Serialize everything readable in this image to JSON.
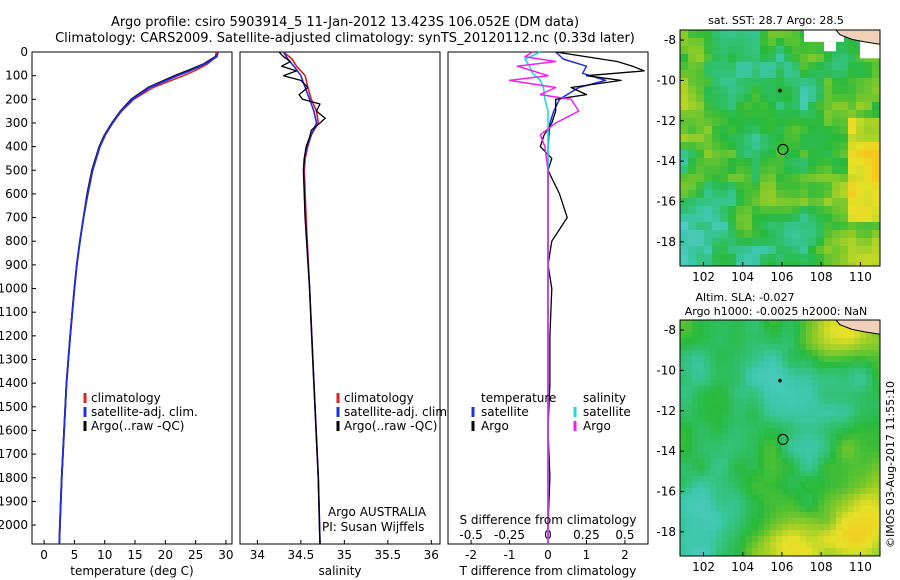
{
  "title_line1": "Argo profile: csiro 5903914_5 11-Jan-2012 13.423S 106.052E (DM data)",
  "title_line2": "Climatology: CARS2009. Satellite-adjusted climatology: synTS_20120112.nc (0.33d later)",
  "credit": "©IMOS 03-Aug-2017 11:55:10",
  "colors": {
    "climatology": "#e02020",
    "satellite": "#1f2fe0",
    "argo": "#000000",
    "salinity_satellite": "#22d8e8",
    "salinity_argo": "#ee22ee"
  },
  "depth_ticks": [
    "0",
    "100",
    "200",
    "300",
    "400",
    "500",
    "600",
    "700",
    "800",
    "900",
    "1000",
    "1100",
    "1200",
    "1300",
    "1400",
    "1500",
    "1600",
    "1700",
    "1800",
    "1900",
    "2000"
  ],
  "temp_panel": {
    "xlabel": "temperature (deg C)",
    "xticks": [
      "0",
      "5",
      "10",
      "15",
      "20",
      "25",
      "30"
    ],
    "legend": [
      "climatology",
      "satellite-adj. clim.",
      "Argo(..raw -QC)"
    ]
  },
  "sal_panel": {
    "xlabel": "salinity",
    "xticks": [
      "34",
      "34.5",
      "35",
      "35.5",
      "36"
    ],
    "legend": [
      "climatology",
      "satellite-adj. clim.",
      "Argo(..raw -QC)"
    ],
    "note1": "Argo AUSTRALIA",
    "note2": "PI: Susan Wijffels"
  },
  "diff_panel": {
    "top_xlabel": "S difference from climatology",
    "top_xticks": [
      "-0.5",
      "-0.25",
      "0",
      "0.25",
      "0.5"
    ],
    "xlabel": "T difference from climatology",
    "xticks": [
      "-2",
      "-1",
      "0",
      "1",
      "2"
    ],
    "legend_t_title": "temperature",
    "legend_s_title": "salinity",
    "legend_t": [
      "satellite",
      "Argo"
    ],
    "legend_s": [
      "satellite",
      "Argo"
    ]
  },
  "map_sst": {
    "title": "sat. SST: 28.7  Argo: 28.5",
    "xticks": [
      "102",
      "104",
      "106",
      "108",
      "110"
    ],
    "yticks": [
      "-8",
      "-10",
      "-12",
      "-14",
      "-16",
      "-18"
    ]
  },
  "map_sla": {
    "title1": "Altim. SLA: -0.027",
    "title2": "Argo h1000: -0.0025 h2000: NaN",
    "xticks": [
      "102",
      "104",
      "106",
      "108",
      "110"
    ],
    "yticks": [
      "-8",
      "-10",
      "-12",
      "-14",
      "-16",
      "-18"
    ]
  },
  "chart_data": [
    {
      "type": "line",
      "title": "",
      "xlabel": "temperature (deg C)",
      "ylabel": "",
      "xlim": [
        -2,
        31
      ],
      "ylim": [
        2080,
        0
      ],
      "series": [
        {
          "name": "climatology",
          "depth": [
            0,
            20,
            50,
            80,
            100,
            150,
            200,
            250,
            300,
            350,
            400,
            500,
            600,
            700,
            800,
            900,
            1000,
            1200,
            1400,
            1600,
            1800,
            2000,
            2080
          ],
          "values": [
            28.5,
            28.4,
            27.0,
            24.8,
            23.0,
            18.0,
            14.8,
            12.8,
            11.3,
            10.1,
            9.2,
            8.0,
            7.2,
            6.5,
            5.9,
            5.4,
            5.0,
            4.3,
            3.7,
            3.3,
            2.9,
            2.6,
            2.5
          ]
        },
        {
          "name": "satellite-adj. clim.",
          "depth": [
            0,
            20,
            50,
            80,
            100,
            150,
            200,
            250,
            300,
            350,
            400,
            500,
            600,
            700,
            800,
            900,
            1000,
            1200,
            1400,
            1600,
            1800,
            2000,
            2080
          ],
          "values": [
            28.7,
            28.5,
            26.6,
            24.0,
            22.0,
            17.4,
            14.6,
            12.7,
            11.3,
            10.1,
            9.2,
            8.0,
            7.2,
            6.5,
            5.9,
            5.4,
            5.0,
            4.3,
            3.7,
            3.3,
            2.9,
            2.6,
            2.5
          ]
        },
        {
          "name": "Argo(..raw -QC)",
          "depth": [
            0,
            20,
            50,
            80,
            100,
            150,
            200,
            250,
            300,
            350,
            400,
            500,
            600,
            700,
            800,
            900,
            1000,
            1200,
            1400,
            1600,
            1800,
            2000,
            2080
          ],
          "values": [
            28.5,
            28.3,
            26.4,
            23.6,
            21.6,
            17.2,
            14.4,
            12.6,
            11.2,
            10.0,
            9.1,
            7.9,
            7.1,
            6.5,
            5.9,
            5.4,
            5.0,
            4.3,
            3.7,
            3.3,
            2.9,
            2.6,
            2.5
          ]
        }
      ]
    },
    {
      "type": "line",
      "title": "",
      "xlabel": "salinity",
      "ylabel": "",
      "xlim": [
        33.8,
        36.1
      ],
      "ylim": [
        2080,
        0
      ],
      "series": [
        {
          "name": "climatology",
          "depth": [
            0,
            30,
            60,
            100,
            150,
            200,
            250,
            300,
            350,
            400,
            450,
            500,
            700,
            1000,
            1400,
            1800,
            2080
          ],
          "values": [
            34.3,
            34.4,
            34.45,
            34.55,
            34.58,
            34.62,
            34.68,
            34.7,
            34.62,
            34.58,
            34.55,
            34.54,
            34.56,
            34.6,
            34.65,
            34.7,
            34.72
          ]
        },
        {
          "name": "satellite-adj. clim.",
          "depth": [
            0,
            30,
            60,
            100,
            150,
            200,
            250,
            300,
            350,
            400,
            450,
            500,
            700,
            1000,
            1400,
            1800,
            2080
          ],
          "values": [
            34.3,
            34.35,
            34.42,
            34.5,
            34.55,
            34.6,
            34.65,
            34.68,
            34.62,
            34.57,
            34.54,
            34.53,
            34.55,
            34.6,
            34.65,
            34.7,
            34.72
          ]
        },
        {
          "name": "Argo(..raw -QC)",
          "depth": [
            0,
            20,
            40,
            60,
            80,
            100,
            120,
            150,
            180,
            200,
            220,
            250,
            280,
            300,
            330,
            360,
            400,
            450,
            500,
            700,
            1000,
            1400,
            1800,
            2080
          ],
          "values": [
            34.25,
            34.3,
            34.38,
            34.28,
            34.45,
            34.3,
            34.5,
            34.58,
            34.48,
            34.52,
            34.72,
            34.68,
            34.78,
            34.72,
            34.62,
            34.6,
            34.56,
            34.54,
            34.53,
            34.55,
            34.6,
            34.65,
            34.7,
            34.72
          ]
        }
      ]
    },
    {
      "type": "line",
      "title": "",
      "xlabel": "T difference from climatology",
      "ylabel": "",
      "xlim": [
        -2.6,
        2.6
      ],
      "ylim": [
        2080,
        0
      ],
      "series": [
        {
          "name": "temperature satellite",
          "depth": [
            0,
            30,
            60,
            90,
            120,
            150,
            200,
            250,
            300,
            400,
            600,
            1000,
            2080
          ],
          "values": [
            0.2,
            0.4,
            1.0,
            0.9,
            1.5,
            0.8,
            0.3,
            0.15,
            0.05,
            0.0,
            0.0,
            0.0,
            0.0
          ]
        },
        {
          "name": "temperature Argo",
          "depth": [
            0,
            40,
            60,
            80,
            100,
            120,
            150,
            180,
            200,
            250,
            300,
            350,
            400,
            450,
            500,
            600,
            700,
            800,
            900,
            1000,
            1200,
            1400,
            1600,
            1800,
            2000,
            2080
          ],
          "values": [
            0.2,
            1.8,
            2.2,
            2.5,
            1.0,
            1.9,
            0.6,
            1.0,
            0.2,
            0.2,
            0.1,
            -0.1,
            -0.2,
            0.1,
            0.0,
            0.3,
            0.5,
            0.1,
            0.0,
            0.1,
            0.05,
            0.05,
            0.0,
            0.05,
            0.0,
            0.0
          ]
        },
        {
          "name": "salinity satellite",
          "depth": [
            0,
            30,
            60,
            90,
            120,
            150,
            200,
            250,
            300,
            400,
            600,
            1000,
            2080
          ],
          "values": [
            -0.05,
            -0.15,
            -0.12,
            -0.1,
            -0.05,
            -0.03,
            -0.02,
            0.0,
            0.0,
            0.0,
            0.0,
            0.0,
            0.0
          ]
        },
        {
          "name": "salinity Argo",
          "depth": [
            0,
            20,
            40,
            60,
            80,
            100,
            120,
            150,
            180,
            200,
            250,
            300,
            350,
            400,
            500,
            700,
            1000,
            1500,
            2080
          ],
          "values": [
            -0.1,
            -0.15,
            0.05,
            -0.2,
            -0.1,
            0.0,
            -0.25,
            0.05,
            -0.05,
            0.15,
            0.2,
            0.05,
            -0.05,
            -0.02,
            0.0,
            0.0,
            0.0,
            0.0,
            0.0
          ]
        }
      ]
    },
    {
      "type": "heatmap",
      "title": "sat. SST: 28.7  Argo: 28.5",
      "xlim": [
        100.8,
        111
      ],
      "ylim": [
        -19.2,
        -7.5
      ],
      "argo_position": [
        106.05,
        -13.42
      ]
    },
    {
      "type": "heatmap",
      "title": "Altim. SLA: -0.027",
      "xlim": [
        100.8,
        111
      ],
      "ylim": [
        -19.2,
        -7.5
      ],
      "argo_position": [
        106.05,
        -13.42
      ]
    }
  ]
}
